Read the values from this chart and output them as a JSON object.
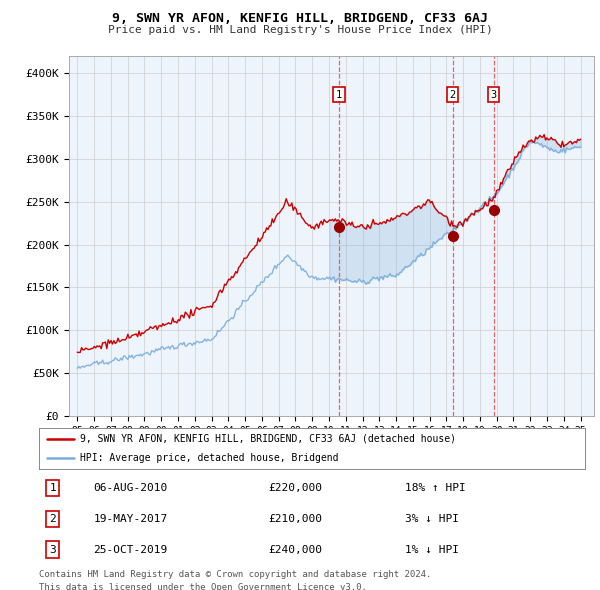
{
  "title": "9, SWN YR AFON, KENFIG HILL, BRIDGEND, CF33 6AJ",
  "subtitle": "Price paid vs. HM Land Registry's House Price Index (HPI)",
  "ylabel_ticks": [
    "£0",
    "£50K",
    "£100K",
    "£150K",
    "£200K",
    "£250K",
    "£300K",
    "£350K",
    "£400K"
  ],
  "ytick_vals": [
    0,
    50000,
    100000,
    150000,
    200000,
    250000,
    300000,
    350000,
    400000
  ],
  "ylim": [
    0,
    420000
  ],
  "legend_line1": "9, SWN YR AFON, KENFIG HILL, BRIDGEND, CF33 6AJ (detached house)",
  "legend_line2": "HPI: Average price, detached house, Bridgend",
  "sale_color": "#cc0000",
  "hpi_color": "#7aaddb",
  "fill_color": "#ddeeff",
  "transaction_color": "#990000",
  "transactions": [
    {
      "label": "1",
      "date": "06-AUG-2010",
      "price": 220000,
      "pct": "18%",
      "dir": "↑",
      "x": 2010.59
    },
    {
      "label": "2",
      "date": "19-MAY-2017",
      "price": 210000,
      "pct": "3%",
      "dir": "↓",
      "x": 2017.38
    },
    {
      "label": "3",
      "date": "25-OCT-2019",
      "price": 240000,
      "pct": "1%",
      "dir": "↓",
      "x": 2019.81
    }
  ],
  "footer1": "Contains HM Land Registry data © Crown copyright and database right 2024.",
  "footer2": "This data is licensed under the Open Government Licence v3.0.",
  "vline_color": "#dd4444",
  "background_color": "#ffffff",
  "chart_bg": "#eef4fb",
  "grid_color": "#cccccc"
}
